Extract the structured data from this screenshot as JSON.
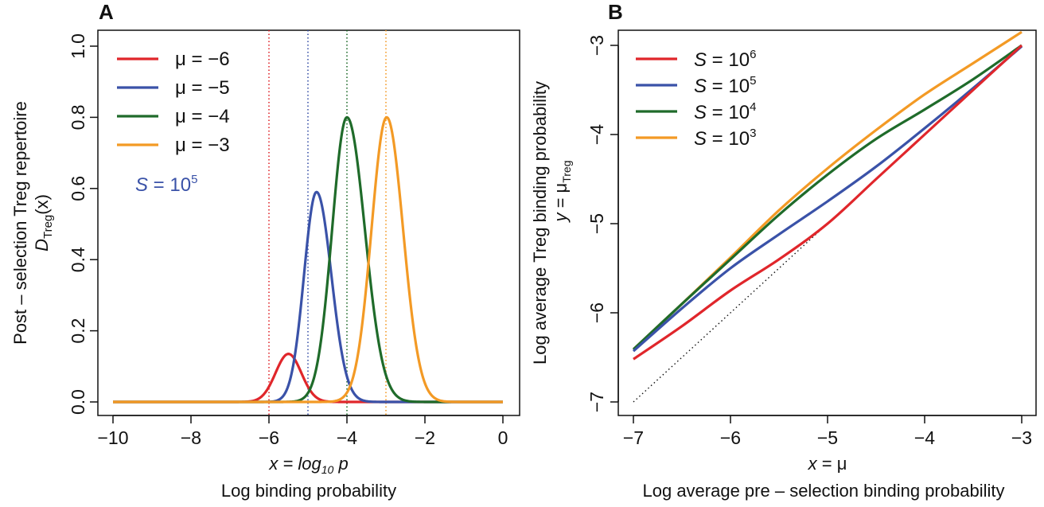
{
  "chart_data": [
    {
      "panel": "A",
      "type": "line",
      "xlabel_math": "x = log₁₀ p",
      "xlabel": "Log binding probability",
      "ylabel_line1": "Post – selection Treg repertoire",
      "ylabel_math": "D_Treg(x)",
      "xlim": [
        -10,
        0
      ],
      "ylim": [
        0,
        1
      ],
      "xticks": [
        "−10",
        "−8",
        "−6",
        "−4",
        "−2",
        "0"
      ],
      "xtick_values": [
        -10,
        -8,
        -6,
        -4,
        -2,
        0
      ],
      "yticks": [
        "0.0",
        "0.2",
        "0.4",
        "0.6",
        "0.8",
        "1.0"
      ],
      "ytick_values": [
        0,
        0.2,
        0.4,
        0.6,
        0.8,
        1.0
      ],
      "annotation": "S = 10⁵",
      "series": [
        {
          "name": "μ = −6",
          "color": "#e0262b",
          "vline": -6,
          "peak_x": -5.5,
          "peak_y": 0.135,
          "sigma_left": 0.33,
          "sigma_right": 0.33
        },
        {
          "name": "μ = −5",
          "color": "#3a52a8",
          "vline": -5,
          "peak_x": -4.78,
          "peak_y": 0.59,
          "sigma_left": 0.32,
          "sigma_right": 0.38
        },
        {
          "name": "μ = −4",
          "color": "#1f6b2a",
          "vline": -4,
          "peak_x": -4.0,
          "peak_y": 0.8,
          "sigma_left": 0.38,
          "sigma_right": 0.46
        },
        {
          "name": "μ = −3",
          "color": "#f39a25",
          "vline": -3,
          "peak_x": -2.98,
          "peak_y": 0.8,
          "sigma_left": 0.39,
          "sigma_right": 0.42
        }
      ]
    },
    {
      "panel": "B",
      "type": "line",
      "xlabel_math": "x = μ",
      "xlabel": "Log average pre – selection binding probability",
      "ylabel_line1": "Log average Treg binding probability",
      "ylabel_math": "y = μ_Treg",
      "xlim": [
        -7,
        -3
      ],
      "ylim": [
        -7,
        -3
      ],
      "xticks": [
        "−7",
        "−6",
        "−5",
        "−4",
        "−3"
      ],
      "xtick_values": [
        -7,
        -6,
        -5,
        -4,
        -3
      ],
      "yticks": [
        "−7",
        "−6",
        "−5",
        "−4",
        "−3"
      ],
      "ytick_values": [
        -7,
        -6,
        -5,
        -4,
        -3
      ],
      "series": [
        {
          "name": "S = 10⁶",
          "color": "#e0262b",
          "x": [
            -7,
            -6.5,
            -6,
            -5.5,
            -5,
            -4.5,
            -4,
            -3.5,
            -3
          ],
          "y": [
            -6.52,
            -6.15,
            -5.75,
            -5.4,
            -5.0,
            -4.5,
            -4.0,
            -3.5,
            -3.0
          ]
        },
        {
          "name": "S = 10⁵",
          "color": "#3a52a8",
          "x": [
            -7,
            -6.5,
            -6,
            -5.5,
            -5,
            -4.5,
            -4,
            -3.5,
            -3
          ],
          "y": [
            -6.43,
            -5.95,
            -5.5,
            -5.12,
            -4.75,
            -4.36,
            -3.93,
            -3.48,
            -3.01
          ]
        },
        {
          "name": "S = 10⁴",
          "color": "#1f6b2a",
          "x": [
            -7,
            -6.5,
            -6,
            -5.5,
            -5,
            -4.5,
            -4,
            -3.5,
            -3
          ],
          "y": [
            -6.41,
            -5.9,
            -5.4,
            -4.9,
            -4.45,
            -4.05,
            -3.72,
            -3.38,
            -3.0
          ]
        },
        {
          "name": "S = 10³",
          "color": "#f39a25",
          "x": [
            -7,
            -6.5,
            -6,
            -5.5,
            -5,
            -4.5,
            -4,
            -3.5,
            -3
          ],
          "y": [
            -6.41,
            -5.9,
            -5.38,
            -4.85,
            -4.38,
            -3.95,
            -3.55,
            -3.2,
            -2.85
          ]
        },
        {
          "name": "identity",
          "color": "#111111",
          "dotted": true,
          "x": [
            -7,
            -3
          ],
          "y": [
            -7,
            -3
          ]
        }
      ]
    }
  ]
}
